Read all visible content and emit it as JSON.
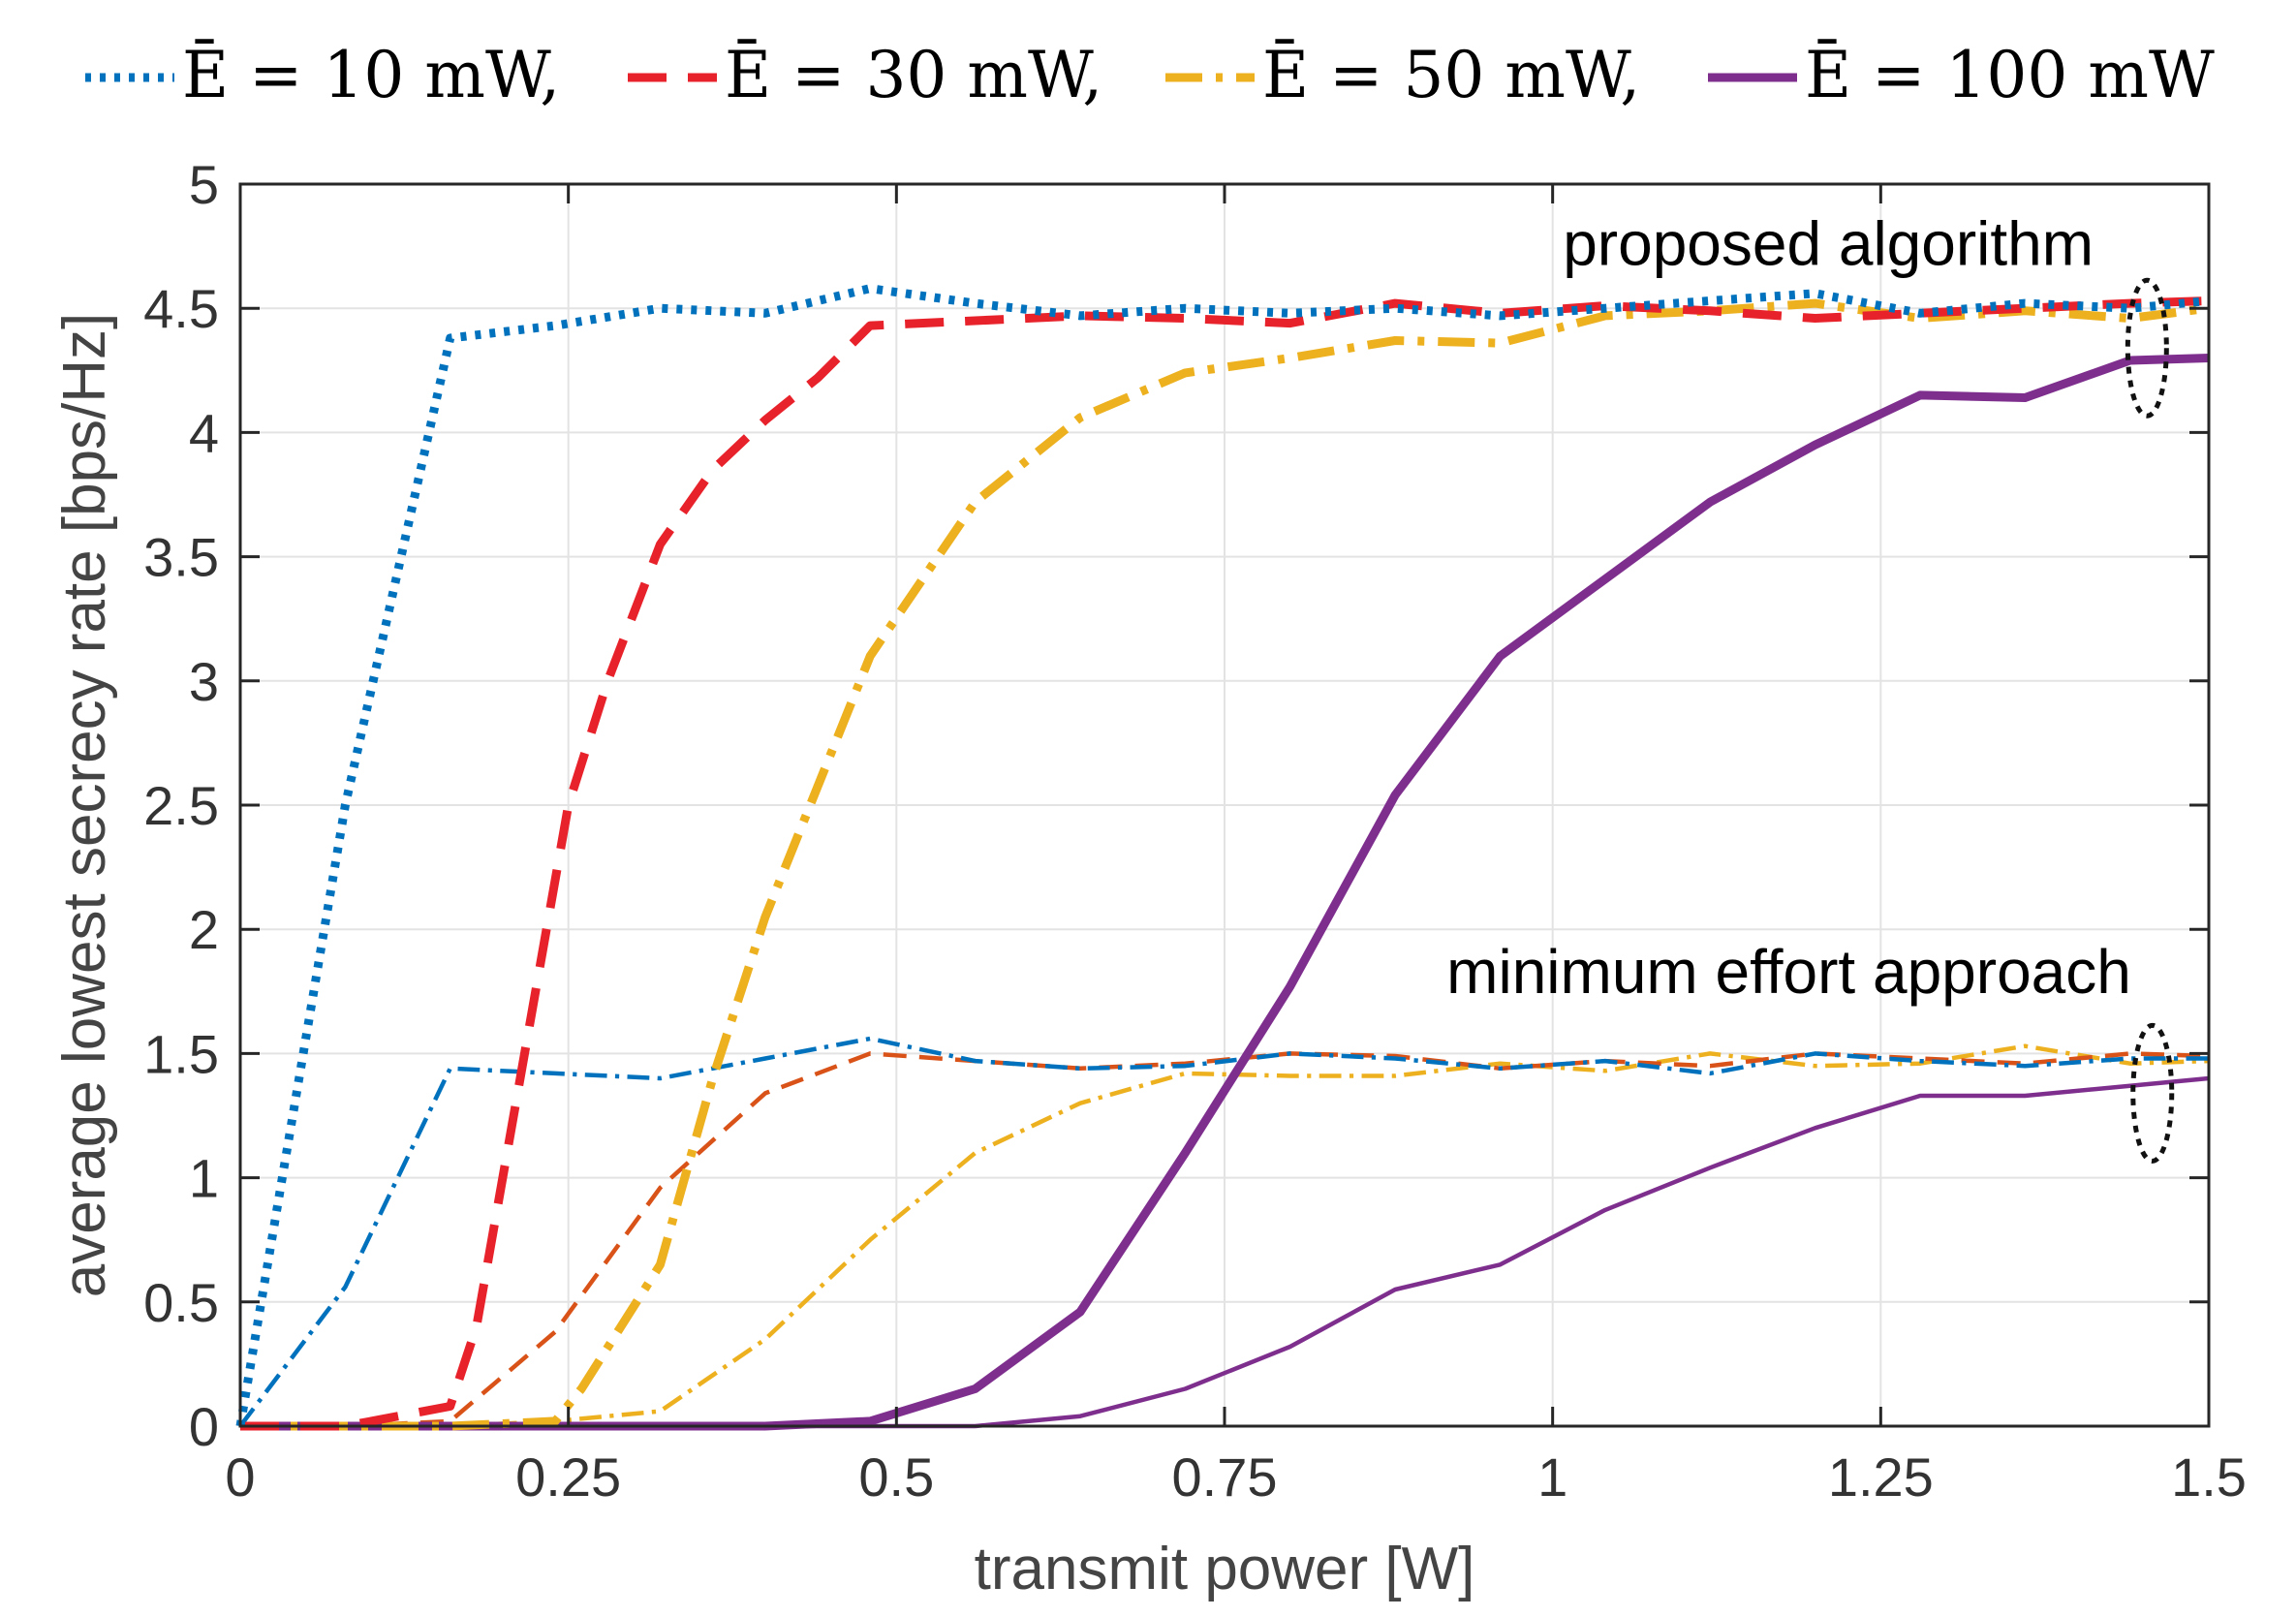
{
  "chart_data": {
    "type": "line",
    "xlabel": "transmit power [W]",
    "ylabel": "average lowest secrecy rate [bps/Hz]",
    "xlim": [
      0,
      1.5
    ],
    "ylim": [
      0,
      5
    ],
    "grid": true,
    "legend_position": "top",
    "xticks": [
      {
        "value": 0,
        "label": "0"
      },
      {
        "value": 0.25,
        "label": "0.25"
      },
      {
        "value": 0.5,
        "label": "0.5"
      },
      {
        "value": 0.75,
        "label": "0.75"
      },
      {
        "value": 1,
        "label": "1"
      },
      {
        "value": 1.25,
        "label": "1.25"
      },
      {
        "value": 1.5,
        "label": "1.5"
      }
    ],
    "yticks": [
      {
        "value": 0,
        "label": "0"
      },
      {
        "value": 0.5,
        "label": "0.5"
      },
      {
        "value": 1,
        "label": "1"
      },
      {
        "value": 1.5,
        "label": "1.5"
      },
      {
        "value": 2,
        "label": "2"
      },
      {
        "value": 2.5,
        "label": "2.5"
      },
      {
        "value": 3,
        "label": "3"
      },
      {
        "value": 3.5,
        "label": "3.5"
      },
      {
        "value": 4,
        "label": "4"
      },
      {
        "value": 4.5,
        "label": "4.5"
      },
      {
        "value": 5,
        "label": "5"
      }
    ],
    "legend": [
      {
        "label": "Ē = 10 mW,",
        "color": "#0072BD",
        "style": "dotted"
      },
      {
        "label": "Ē = 30 mW,",
        "color": "#E8222B",
        "style": "dashed"
      },
      {
        "label": "Ē = 50 mW,",
        "color": "#EDB120",
        "style": "dashdot"
      },
      {
        "label": "Ē = 100 mW",
        "color": "#7E2F8E",
        "style": "solid"
      }
    ],
    "annotations": [
      {
        "text": "proposed algorithm",
        "x": 1.21,
        "y": 4.76
      },
      {
        "text": "minimum effort approach",
        "x": 1.18,
        "y": 1.83
      }
    ],
    "series": [
      {
        "name": "Ē = 10 mW (proposed algorithm)",
        "color": "#0072BD",
        "style": "dotted",
        "width": "thick",
        "x": [
          0,
          0.08,
          0.16,
          0.24,
          0.32,
          0.4,
          0.48,
          0.56,
          0.64,
          0.72,
          0.8,
          0.88,
          0.96,
          1.04,
          1.12,
          1.2,
          1.28,
          1.36,
          1.44,
          1.5
        ],
        "y": [
          0,
          2.5,
          4.38,
          4.43,
          4.5,
          4.48,
          4.58,
          4.52,
          4.47,
          4.5,
          4.48,
          4.5,
          4.47,
          4.5,
          4.53,
          4.56,
          4.48,
          4.52,
          4.5,
          4.53
        ]
      },
      {
        "name": "Ē = 30 mW (proposed algorithm)",
        "color": "#E8222B",
        "style": "dashed",
        "width": "thick",
        "x": [
          0,
          0.08,
          0.16,
          0.18,
          0.22,
          0.25,
          0.28,
          0.32,
          0.36,
          0.4,
          0.44,
          0.48,
          0.56,
          0.64,
          0.72,
          0.8,
          0.88,
          0.96,
          1.04,
          1.12,
          1.2,
          1.28,
          1.36,
          1.44,
          1.5
        ],
        "y": [
          0,
          0,
          0.08,
          0.4,
          1.6,
          2.5,
          3.0,
          3.55,
          3.85,
          4.05,
          4.22,
          4.43,
          4.45,
          4.47,
          4.46,
          4.44,
          4.52,
          4.48,
          4.51,
          4.49,
          4.46,
          4.48,
          4.5,
          4.52,
          4.53
        ]
      },
      {
        "name": "Ē = 50 mW (proposed algorithm)",
        "color": "#EDB120",
        "style": "dashdot",
        "width": "thick",
        "x": [
          0,
          0.08,
          0.16,
          0.24,
          0.26,
          0.32,
          0.36,
          0.4,
          0.48,
          0.56,
          0.64,
          0.72,
          0.8,
          0.88,
          0.96,
          1.04,
          1.12,
          1.2,
          1.28,
          1.36,
          1.44,
          1.5
        ],
        "y": [
          0,
          0,
          0,
          0.02,
          0.15,
          0.65,
          1.4,
          2.05,
          3.1,
          3.72,
          4.06,
          4.24,
          4.3,
          4.37,
          4.36,
          4.47,
          4.49,
          4.52,
          4.46,
          4.49,
          4.46,
          4.5
        ]
      },
      {
        "name": "Ē = 100 mW (proposed algorithm)",
        "color": "#7E2F8E",
        "style": "solid",
        "width": "thick",
        "x": [
          0,
          0.08,
          0.16,
          0.24,
          0.32,
          0.4,
          0.48,
          0.56,
          0.64,
          0.72,
          0.8,
          0.88,
          0.96,
          1.04,
          1.12,
          1.2,
          1.28,
          1.36,
          1.44,
          1.5
        ],
        "y": [
          0,
          0,
          0,
          0,
          0,
          0,
          0.02,
          0.15,
          0.46,
          1.1,
          1.77,
          2.54,
          3.1,
          3.41,
          3.72,
          3.95,
          4.15,
          4.14,
          4.29,
          4.3
        ]
      },
      {
        "name": "Ē = 10 mW (minimum effort approach)",
        "color": "#0072BD",
        "style": "dashdot",
        "width": "thin",
        "x": [
          0,
          0.08,
          0.16,
          0.24,
          0.32,
          0.4,
          0.48,
          0.56,
          0.64,
          0.72,
          0.8,
          0.88,
          0.96,
          1.04,
          1.12,
          1.2,
          1.28,
          1.36,
          1.44,
          1.5
        ],
        "y": [
          0,
          0.56,
          1.44,
          1.42,
          1.4,
          1.48,
          1.56,
          1.47,
          1.44,
          1.45,
          1.5,
          1.48,
          1.44,
          1.47,
          1.42,
          1.5,
          1.47,
          1.45,
          1.48,
          1.48
        ]
      },
      {
        "name": "Ē = 30 mW (minimum effort approach)",
        "color": "#D95319",
        "style": "dashed",
        "width": "thin",
        "x": [
          0,
          0.08,
          0.16,
          0.24,
          0.32,
          0.4,
          0.48,
          0.56,
          0.64,
          0.72,
          0.8,
          0.88,
          0.96,
          1.04,
          1.12,
          1.2,
          1.28,
          1.36,
          1.44,
          1.5
        ],
        "y": [
          0,
          0,
          0.02,
          0.38,
          0.96,
          1.34,
          1.5,
          1.47,
          1.44,
          1.46,
          1.5,
          1.49,
          1.44,
          1.47,
          1.45,
          1.5,
          1.48,
          1.46,
          1.5,
          1.49
        ]
      },
      {
        "name": "Ē = 50 mW (minimum effort approach)",
        "color": "#EDB120",
        "style": "dashdot",
        "width": "thin",
        "x": [
          0,
          0.08,
          0.16,
          0.24,
          0.32,
          0.4,
          0.48,
          0.56,
          0.64,
          0.72,
          0.8,
          0.88,
          0.96,
          1.04,
          1.12,
          1.2,
          1.28,
          1.36,
          1.44,
          1.5
        ],
        "y": [
          0,
          0,
          0,
          0.02,
          0.06,
          0.35,
          0.75,
          1.1,
          1.3,
          1.42,
          1.41,
          1.41,
          1.46,
          1.43,
          1.5,
          1.45,
          1.46,
          1.53,
          1.46,
          1.47
        ]
      },
      {
        "name": "Ē = 100 mW (minimum effort approach)",
        "color": "#7E2F8E",
        "style": "solid",
        "width": "thin",
        "x": [
          0,
          0.08,
          0.16,
          0.24,
          0.32,
          0.4,
          0.48,
          0.56,
          0.64,
          0.72,
          0.8,
          0.88,
          0.96,
          1.04,
          1.12,
          1.2,
          1.28,
          1.36,
          1.44,
          1.5
        ],
        "y": [
          0,
          0,
          0,
          0,
          0,
          0,
          0,
          0,
          0.04,
          0.15,
          0.32,
          0.55,
          0.65,
          0.87,
          1.04,
          1.2,
          1.33,
          1.33,
          1.37,
          1.4
        ]
      }
    ]
  }
}
